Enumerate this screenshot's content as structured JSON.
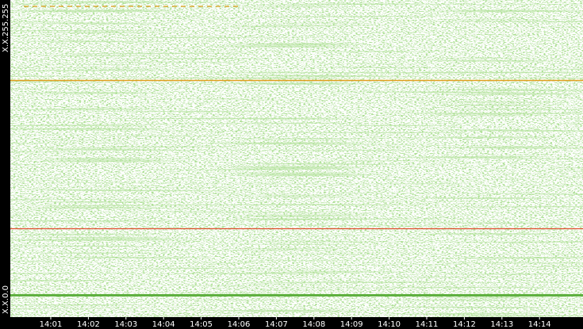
{
  "y_axis": {
    "top_label": "X.X.255.255",
    "bottom_label": "X.X.0.0"
  },
  "x_axis": {
    "ticks": [
      "14:01",
      "14:02",
      "14:03",
      "14:04",
      "14:05",
      "14:06",
      "14:07",
      "14:08",
      "14:09",
      "14:10",
      "14:11",
      "14:12",
      "14:13",
      "14:14"
    ]
  }
}
